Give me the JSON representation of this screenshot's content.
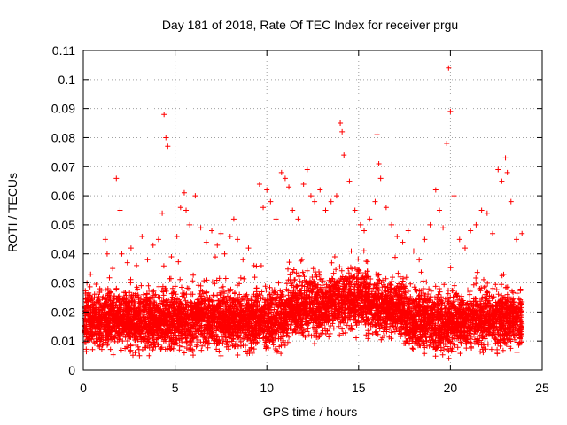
{
  "chart_data": {
    "type": "scatter",
    "title": "Day 181 of 2018, Rate Of TEC Index for receiver prgu",
    "xlabel": "GPS time / hours",
    "ylabel": "ROTI / TECUs",
    "xlim": [
      0,
      25
    ],
    "ylim": [
      0,
      0.11
    ],
    "xticks": [
      0,
      5,
      10,
      15,
      20,
      25
    ],
    "xtick_labels": [
      "0",
      "5",
      "10",
      "15",
      "20",
      "25"
    ],
    "yticks": [
      0,
      0.01,
      0.02,
      0.03,
      0.04,
      0.05,
      0.06,
      0.07,
      0.08,
      0.09,
      0.1,
      0.11
    ],
    "ytick_labels": [
      "0",
      "0.01",
      "0.02",
      "0.03",
      "0.04",
      "0.05",
      "0.06",
      "0.07",
      "0.08",
      "0.09",
      "0.1",
      "0.11"
    ],
    "grid": true,
    "marker": "+",
    "color": "#ff0000",
    "series": [
      {
        "name": "ROTI",
        "x": [
          0.2,
          0.4,
          0.6,
          0.9,
          1.2,
          1.3,
          1.6,
          1.8,
          2.0,
          2.1,
          2.4,
          2.6,
          2.9,
          3.2,
          3.5,
          3.8,
          4.1,
          4.3,
          4.4,
          4.5,
          4.6,
          4.8,
          5.1,
          5.3,
          5.5,
          5.6,
          5.8,
          6.1,
          6.4,
          6.7,
          7.0,
          7.3,
          7.5,
          7.7,
          8.0,
          8.2,
          8.4,
          8.7,
          9.0,
          9.3,
          9.6,
          9.8,
          10.0,
          10.2,
          10.5,
          10.8,
          11.0,
          11.2,
          11.4,
          11.7,
          12.0,
          12.2,
          12.4,
          12.6,
          12.9,
          13.2,
          13.5,
          13.8,
          14.0,
          14.1,
          14.2,
          14.5,
          14.8,
          15.1,
          15.3,
          15.6,
          15.9,
          16.0,
          16.1,
          16.2,
          16.5,
          16.8,
          17.1,
          17.4,
          17.7,
          18.0,
          18.3,
          18.6,
          18.9,
          19.2,
          19.4,
          19.6,
          19.8,
          19.9,
          20.0,
          20.2,
          20.5,
          20.8,
          21.1,
          21.4,
          21.7,
          22.0,
          22.3,
          22.6,
          22.8,
          23.0,
          23.1,
          23.3,
          23.6,
          23.9,
          0.1,
          0.5,
          1.0,
          1.5,
          2.2,
          2.8,
          3.3,
          3.9,
          4.2,
          4.7,
          5.2,
          5.9,
          6.5,
          7.1,
          7.8,
          8.5,
          9.1,
          9.7,
          10.3,
          10.9,
          11.5,
          12.1,
          12.7,
          13.3,
          13.9,
          14.6,
          15.2,
          15.8,
          16.4,
          17.0,
          17.6,
          18.2,
          18.8,
          19.5,
          20.1,
          20.7,
          21.3,
          21.9,
          22.5,
          23.2,
          23.8
        ],
        "y": [
          0.03,
          0.033,
          0.025,
          0.028,
          0.045,
          0.04,
          0.035,
          0.066,
          0.055,
          0.04,
          0.037,
          0.042,
          0.036,
          0.046,
          0.038,
          0.043,
          0.045,
          0.054,
          0.088,
          0.08,
          0.077,
          0.039,
          0.046,
          0.056,
          0.061,
          0.055,
          0.05,
          0.06,
          0.049,
          0.044,
          0.048,
          0.043,
          0.047,
          0.04,
          0.046,
          0.052,
          0.045,
          0.038,
          0.042,
          0.036,
          0.064,
          0.056,
          0.062,
          0.058,
          0.052,
          0.068,
          0.066,
          0.063,
          0.055,
          0.052,
          0.064,
          0.069,
          0.06,
          0.058,
          0.062,
          0.055,
          0.058,
          0.06,
          0.085,
          0.082,
          0.074,
          0.065,
          0.055,
          0.05,
          0.048,
          0.052,
          0.058,
          0.081,
          0.071,
          0.066,
          0.056,
          0.05,
          0.046,
          0.044,
          0.048,
          0.041,
          0.038,
          0.045,
          0.05,
          0.062,
          0.055,
          0.049,
          0.078,
          0.104,
          0.089,
          0.06,
          0.045,
          0.042,
          0.048,
          0.05,
          0.055,
          0.054,
          0.047,
          0.069,
          0.065,
          0.073,
          0.068,
          0.058,
          0.045,
          0.047,
          0.015,
          0.02,
          0.018,
          0.022,
          0.019,
          0.021,
          0.017,
          0.02,
          0.023,
          0.018,
          0.016,
          0.019,
          0.02,
          0.018,
          0.021,
          0.017,
          0.022,
          0.019,
          0.024,
          0.02,
          0.022,
          0.025,
          0.021,
          0.023,
          0.026,
          0.024,
          0.02,
          0.022,
          0.025,
          0.021,
          0.019,
          0.02,
          0.018,
          0.021,
          0.022,
          0.019,
          0.02,
          0.021,
          0.02,
          0.018,
          0.017
        ]
      }
    ]
  }
}
